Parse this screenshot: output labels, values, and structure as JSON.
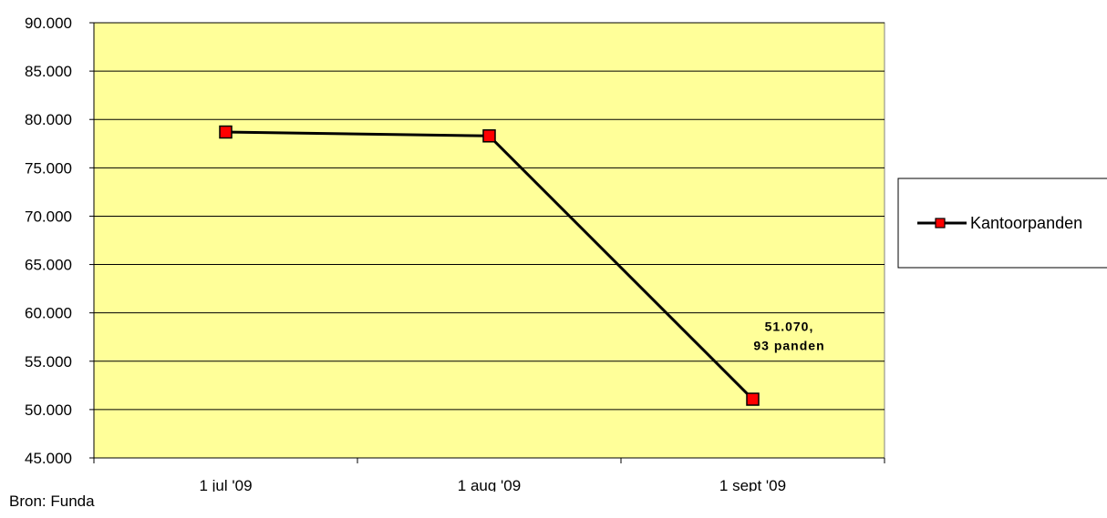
{
  "chart_data": {
    "type": "line",
    "categories": [
      "1 jul '09",
      "1 aug '09",
      "1 sept '09"
    ],
    "series": [
      {
        "name": "Kantoorpanden",
        "values": [
          78700,
          78300,
          51070
        ]
      }
    ],
    "ylim": [
      45000,
      90000
    ],
    "ytick_step": 5000,
    "ytick_labels": [
      "45.000",
      "50.000",
      "55.000",
      "60.000",
      "65.000",
      "70.000",
      "75.000",
      "80.000",
      "85.000",
      "90.000"
    ],
    "annotations": [
      {
        "category": "1 sept '09",
        "lines": [
          "51.070,",
          "93 panden"
        ]
      }
    ],
    "grid": true,
    "legend": "right",
    "colors": {
      "plot_background": "#FFFF99",
      "line": "#000000",
      "marker": "#FF0000"
    }
  },
  "source_note": "Bron: Funda"
}
